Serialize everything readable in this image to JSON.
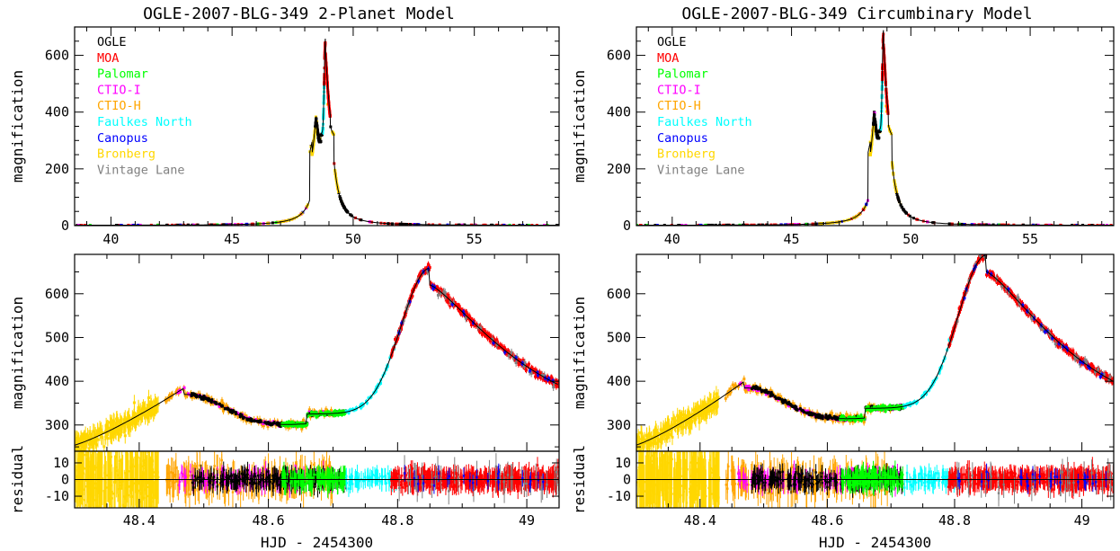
{
  "panels_layout": "two columns (2-Planet Model left, Circumbinary Model right), each with overview, zoom and residual sub-panels",
  "legend": {
    "placement": "top-left of overview panels",
    "entries": [
      {
        "label": "OGLE",
        "color": "#000000"
      },
      {
        "label": "MOA",
        "color": "#ff0000"
      },
      {
        "label": "Palomar",
        "color": "#00ff00"
      },
      {
        "label": "CTIO-I",
        "color": "#ff00ff"
      },
      {
        "label": "CTIO-H",
        "color": "#ffa500"
      },
      {
        "label": "Faulkes North",
        "color": "#00ffff"
      },
      {
        "label": "Canopus",
        "color": "#0000ff"
      },
      {
        "label": "Bronberg",
        "color": "#ffd700"
      },
      {
        "label": "Vintage Lane",
        "color": "#808080"
      }
    ]
  },
  "chart_data": [
    {
      "type": "scatter",
      "title": "OGLE-2007-BLG-349 2-Planet Model",
      "panel": "overview",
      "xlabel": "",
      "ylabel": "magnification",
      "xlim": [
        38.5,
        58.5
      ],
      "ylim": [
        0,
        700
      ],
      "xticks": [
        40,
        45,
        50,
        55
      ],
      "yticks": [
        0,
        200,
        400,
        600
      ],
      "model_curve": {
        "t0": 48.85,
        "peak": 620,
        "secondary_peak": {
          "x": 48.47,
          "y": 385
        }
      },
      "series": [
        {
          "name": "Bronberg",
          "x": [
            47.3,
            48.3,
            48.45,
            49.2,
            49.3
          ],
          "y": [
            80,
            300,
            360,
            250,
            180
          ]
        },
        {
          "name": "MOA",
          "x": [
            48.8,
            48.85,
            48.9,
            49.5,
            52,
            55,
            57.5
          ],
          "y": [
            500,
            620,
            560,
            80,
            25,
            15,
            10
          ]
        },
        {
          "name": "OGLE",
          "x": [
            48.5,
            48.6,
            48.7,
            49.7,
            53.2,
            57.6
          ],
          "y": [
            370,
            310,
            330,
            60,
            20,
            12
          ]
        }
      ]
    },
    {
      "type": "scatter",
      "title": "",
      "panel": "zoom",
      "xlabel": "",
      "ylabel": "magnification",
      "xlim": [
        48.3,
        49.05
      ],
      "ylim": [
        240,
        690
      ],
      "xticks": [
        48.4,
        48.6,
        48.8,
        49
      ],
      "yticks": [
        300,
        400,
        500,
        600
      ],
      "model_peak": {
        "x": 48.85,
        "y": 620
      },
      "model_secondary": {
        "x": 48.47,
        "y": 385
      },
      "model_trough": {
        "x": 48.6,
        "y": 295
      }
    },
    {
      "type": "scatter",
      "title": "",
      "panel": "residual",
      "xlabel": "HJD - 2454300",
      "ylabel": "residual",
      "xlim": [
        48.3,
        49.05
      ],
      "ylim": [
        -17,
        17
      ],
      "xticks": [
        48.4,
        48.6,
        48.8,
        49
      ],
      "yticks": [
        10,
        0,
        -10
      ]
    },
    {
      "type": "scatter",
      "title": "OGLE-2007-BLG-349 Circumbinary Model",
      "panel": "overview",
      "xlabel": "",
      "ylabel": "magnification",
      "xlim": [
        38.5,
        58.5
      ],
      "ylim": [
        0,
        700
      ],
      "xticks": [
        40,
        45,
        50,
        55
      ],
      "yticks": [
        0,
        200,
        400,
        600
      ],
      "model_curve": {
        "t0": 48.85,
        "peak": 650,
        "secondary_peak": {
          "x": 48.47,
          "y": 400
        }
      }
    },
    {
      "type": "scatter",
      "title": "",
      "panel": "zoom",
      "xlabel": "",
      "ylabel": "magnification",
      "xlim": [
        48.3,
        49.05
      ],
      "ylim": [
        240,
        690
      ],
      "xticks": [
        48.4,
        48.6,
        48.8,
        49
      ],
      "yticks": [
        300,
        400,
        500,
        600
      ],
      "model_peak": {
        "x": 48.85,
        "y": 650
      },
      "model_secondary": {
        "x": 48.47,
        "y": 400
      },
      "model_trough": {
        "x": 48.6,
        "y": 308
      }
    },
    {
      "type": "scatter",
      "title": "",
      "panel": "residual",
      "xlabel": "HJD - 2454300",
      "ylabel": "residual",
      "xlim": [
        48.3,
        49.05
      ],
      "ylim": [
        -17,
        17
      ],
      "xticks": [
        48.4,
        48.6,
        48.8,
        49
      ],
      "yticks": [
        10,
        0,
        -10
      ]
    }
  ]
}
